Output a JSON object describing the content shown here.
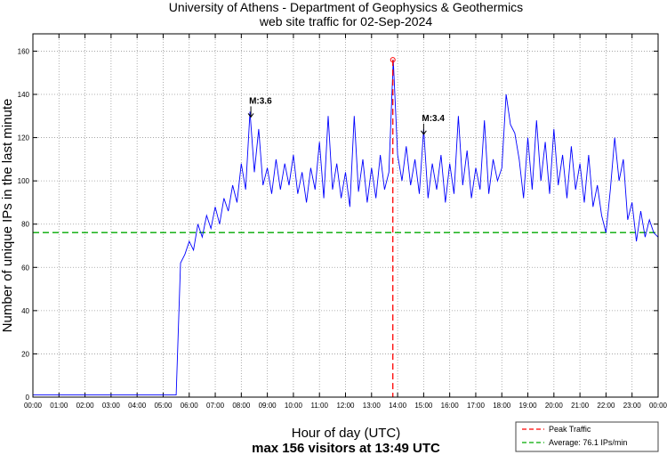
{
  "chart_data": {
    "type": "line",
    "title": [
      "University of Athens - Department of Geophysics & Geothermics",
      "web site traffic for 02-Sep-2024"
    ],
    "xlabel": "Hour of day (UTC)",
    "ylabel": "Number of unique IPs in the last minute",
    "subtitle": "max 156 visitors at 13:49 UTC",
    "xlim_minutes": [
      0,
      1440
    ],
    "ylim": [
      0,
      168
    ],
    "grid": true,
    "x_tick_labels": [
      "00:00",
      "01:00",
      "02:00",
      "03:00",
      "04:00",
      "05:00",
      "06:00",
      "07:00",
      "08:00",
      "09:00",
      "10:00",
      "11:00",
      "12:00",
      "13:00",
      "14:00",
      "15:00",
      "16:00",
      "17:00",
      "18:00",
      "19:00",
      "20:00",
      "21:00",
      "22:00",
      "23:00",
      "00:00"
    ],
    "y_ticks": [
      0,
      20,
      40,
      60,
      80,
      100,
      120,
      140,
      160
    ],
    "series": [
      {
        "name": "Traffic",
        "color": "#0000ff",
        "x_step_minutes": 10,
        "values": [
          1,
          1,
          1,
          1,
          1,
          1,
          1,
          1,
          1,
          1,
          1,
          1,
          1,
          1,
          1,
          1,
          1,
          1,
          1,
          1,
          1,
          1,
          1,
          1,
          1,
          1,
          1,
          1,
          1,
          1,
          1,
          1,
          1,
          1,
          62,
          66,
          72,
          68,
          80,
          74,
          84,
          78,
          88,
          80,
          92,
          86,
          98,
          90,
          108,
          96,
          132,
          104,
          124,
          98,
          106,
          94,
          110,
          96,
          108,
          98,
          112,
          94,
          104,
          90,
          106,
          96,
          118,
          92,
          130,
          96,
          108,
          92,
          104,
          88,
          130,
          95,
          110,
          90,
          106,
          92,
          112,
          96,
          104,
          156,
          112,
          100,
          116,
          98,
          110,
          94,
          124,
          92,
          108,
          96,
          112,
          90,
          108,
          94,
          130,
          98,
          114,
          92,
          106,
          96,
          128,
          94,
          110,
          100,
          106,
          140,
          126,
          122,
          110,
          92,
          120,
          96,
          128,
          100,
          118,
          94,
          124,
          98,
          112,
          92,
          116,
          96,
          108,
          90,
          112,
          88,
          98,
          84,
          76,
          96,
          120,
          100,
          110,
          82,
          90,
          72,
          86,
          74,
          82,
          76,
          74
        ]
      }
    ],
    "peak": {
      "time": "13:49",
      "minute": 829,
      "value": 156,
      "label": "Peak Traffic",
      "color": "#ff0000"
    },
    "average": {
      "value": 76.1,
      "label": "Average: 76.1 IPs/min",
      "color": "#00aa00"
    },
    "annotations": [
      {
        "label": "M:3.6",
        "minute": 502,
        "value": 132
      },
      {
        "label": "M:3.4",
        "minute": 900,
        "value": 124
      }
    ],
    "legend_position": "bottom-right, outside plot"
  }
}
